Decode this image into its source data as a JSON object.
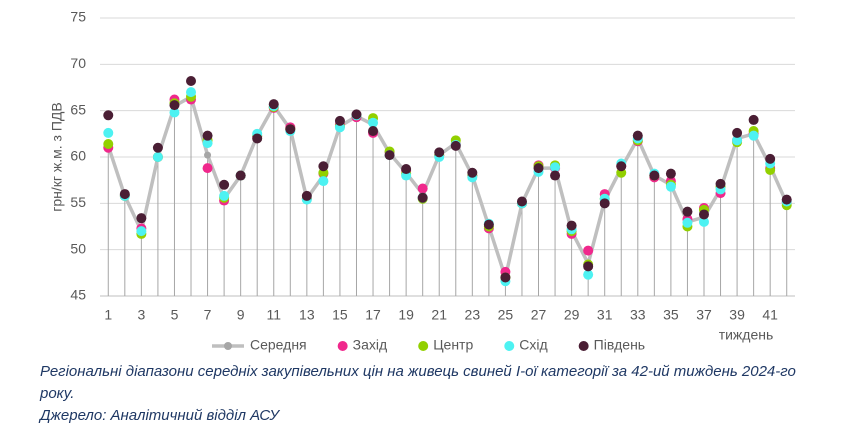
{
  "chart_data": {
    "type": "line",
    "y_label": "грн/кг ж.м. з ПДВ",
    "x_label": "тиждень",
    "categories": [
      "1",
      null,
      "3",
      null,
      "5",
      null,
      "7",
      null,
      "9",
      null,
      "11",
      null,
      "13",
      null,
      "15",
      null,
      "17",
      null,
      "19",
      null,
      "21",
      null,
      "23",
      null,
      "25",
      null,
      "27",
      null,
      "29",
      null,
      "31",
      null,
      "33",
      null,
      "35",
      null,
      "37",
      null,
      "39",
      null,
      "41",
      null
    ],
    "ylim": [
      45,
      75
    ],
    "yticks": [
      45,
      50,
      55,
      60,
      65,
      70,
      75
    ],
    "grid": true,
    "legend": "bottom",
    "drop_lines": true,
    "series": [
      {
        "name": "Середня",
        "color": "#bfbfbf",
        "style": "line",
        "values": [
          61.2,
          55.8,
          52.0,
          60.0,
          65.5,
          66.5,
          60.2,
          55.5,
          58.0,
          62.3,
          65.5,
          63.0,
          55.5,
          58.0,
          63.3,
          64.4,
          63.5,
          60.4,
          58.3,
          56.0,
          60.2,
          61.5,
          58.0,
          52.5,
          47.0,
          55.0,
          58.8,
          58.8,
          52.0,
          48.5,
          55.3,
          58.8,
          62.0,
          58.0,
          57.0,
          53.0,
          53.5,
          56.5,
          62.0,
          62.5,
          59.0,
          55.0
        ]
      },
      {
        "name": "Захід",
        "color": "#f0288c",
        "style": "markers",
        "values": [
          61.0,
          55.8,
          52.3,
          60.0,
          66.2,
          66.2,
          58.8,
          55.3,
          58.0,
          62.2,
          65.3,
          63.2,
          55.5,
          58.2,
          63.5,
          64.3,
          62.6,
          60.5,
          58.5,
          56.6,
          60.2,
          61.4,
          58.0,
          52.3,
          47.6,
          55.0,
          59.1,
          58.8,
          51.7,
          49.9,
          56.0,
          59.0,
          61.7,
          57.8,
          57.4,
          53.3,
          54.5,
          56.1,
          61.8,
          62.5,
          58.8,
          55.1
        ]
      },
      {
        "name": "Центр",
        "color": "#92d000",
        "style": "markers",
        "values": [
          61.4,
          55.8,
          51.7,
          60.0,
          65.8,
          66.5,
          61.8,
          55.6,
          58.0,
          62.3,
          65.4,
          63.0,
          55.5,
          58.3,
          63.3,
          64.5,
          64.2,
          60.6,
          58.2,
          55.5,
          60.2,
          61.8,
          58.0,
          52.5,
          47.0,
          55.0,
          59.0,
          59.1,
          52.0,
          48.4,
          55.5,
          58.3,
          61.8,
          58.0,
          57.0,
          52.5,
          54.3,
          56.8,
          61.6,
          62.8,
          58.6,
          54.8
        ]
      },
      {
        "name": "Схід",
        "color": "#4df2f2",
        "style": "markers",
        "values": [
          62.6,
          55.8,
          52.0,
          60.0,
          64.8,
          67.0,
          61.5,
          55.8,
          58.0,
          62.5,
          65.5,
          62.8,
          55.4,
          57.4,
          63.2,
          64.5,
          63.7,
          60.2,
          58.0,
          55.6,
          60.0,
          61.3,
          57.8,
          52.8,
          46.6,
          55.0,
          58.4,
          58.9,
          52.2,
          47.3,
          55.5,
          59.3,
          62.0,
          58.2,
          56.8,
          52.9,
          53.0,
          56.5,
          61.8,
          62.3,
          59.3,
          55.2
        ]
      },
      {
        "name": "Південь",
        "color": "#4a1e34",
        "style": "markers",
        "values": [
          64.5,
          56.0,
          53.4,
          61.0,
          65.6,
          68.2,
          62.3,
          57.0,
          58.0,
          62.0,
          65.7,
          63.0,
          55.8,
          59.0,
          63.9,
          64.6,
          62.8,
          60.2,
          58.7,
          55.6,
          60.5,
          61.2,
          58.3,
          52.7,
          47.0,
          55.2,
          58.8,
          58.0,
          52.6,
          48.2,
          55.0,
          59.0,
          62.3,
          58.0,
          58.2,
          54.1,
          53.8,
          57.1,
          62.6,
          64.0,
          59.8,
          55.4
        ]
      }
    ]
  },
  "caption": "Регіональні діапазони середніх закупівельних цін на живець свиней І-ої категорії за 42-ий тиждень 2024-го року.",
  "source": "Джерело: Аналітичний відділ АСУ"
}
